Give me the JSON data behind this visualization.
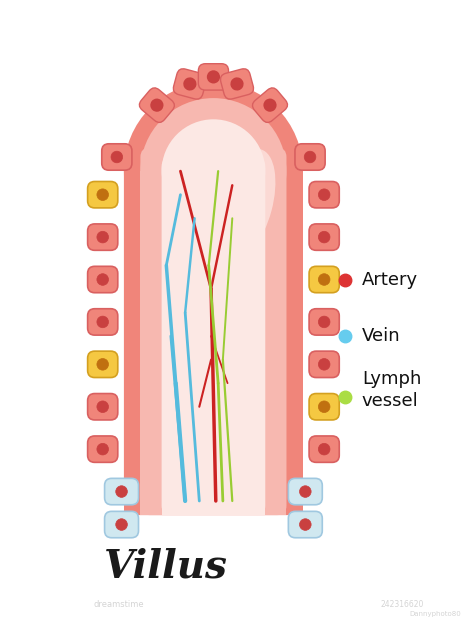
{
  "title": "Villus",
  "title_fontsize": 28,
  "title_color": "#1a1a1a",
  "bg_color": "#ffffff",
  "outer_villus_color": "#f0857a",
  "outer_villus_border": "#e06060",
  "inner_villus_color": "#f7b8b0",
  "inner_villus_light": "#fad4cc",
  "inner_core_color": "#fce8e4",
  "cell_outer_color": "#f0857a",
  "cell_border_color": "#d96060",
  "cell_nucleus_color": "#c94040",
  "cell_goblet_color": "#f5c842",
  "cell_goblet_border": "#d4a020",
  "cell_goblet_nucleus_color": "#c07010",
  "bottom_cell_bg": "#d0e8f0",
  "bottom_cell_border": "#a0c8e0",
  "artery_color": "#cc2222",
  "vein_color": "#55bbdd",
  "lymph_color": "#99cc33",
  "legend_artery": "#dd3333",
  "legend_vein": "#66ccee",
  "legend_lymph": "#aadd44",
  "legend_artery_label": "Artery",
  "legend_vein_label": "Vein",
  "legend_lymph_label": "Lymph\nvessel",
  "legend_fontsize": 13,
  "watermark1": "dreamstime",
  "watermark2": "242316620",
  "watermark3": "Dannyphoto80"
}
